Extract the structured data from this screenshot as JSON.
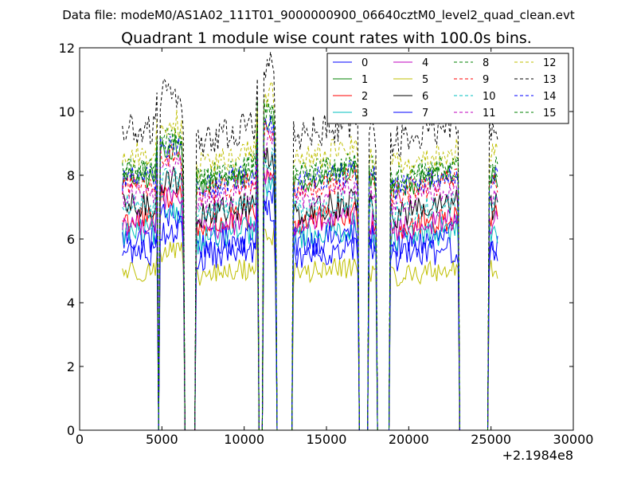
{
  "suptitle": "Data file: modeM0/AS1A02_111T01_9000000900_06640cztM0_level2_quad_clean.evt",
  "chart_data": {
    "type": "line",
    "title": "Quadrant 1 module wise count rates with 100.0s bins.",
    "xlabel": "",
    "ylabel": "",
    "xlim": [
      0,
      30000
    ],
    "ylim": [
      0,
      12
    ],
    "x_offset_label": "+2.1984e8",
    "x_ticks": [
      0,
      5000,
      10000,
      15000,
      20000,
      25000,
      30000
    ],
    "y_ticks": [
      0,
      2,
      4,
      6,
      8,
      10,
      12
    ],
    "x_tick_labels": [
      "0",
      "5000",
      "10000",
      "15000",
      "20000",
      "25000",
      "30000"
    ],
    "y_tick_labels": [
      "0",
      "2",
      "4",
      "6",
      "8",
      "10",
      "12"
    ],
    "legend_position": "top-right",
    "legend_columns": 4,
    "bin_size_s": 100,
    "x_start": 2600,
    "x_end": 25400,
    "gaps": [
      [
        4700,
        4900
      ],
      [
        6300,
        7100
      ],
      [
        10800,
        11200
      ],
      [
        11900,
        13000
      ],
      [
        16900,
        17600
      ],
      [
        18000,
        18900
      ],
      [
        23000,
        24900
      ]
    ],
    "series": [
      {
        "name": "0",
        "color": "#0000ff",
        "dash": "solid",
        "level": 6.0,
        "amp": 0.5
      },
      {
        "name": "1",
        "color": "#008000",
        "dash": "solid",
        "level": 7.9,
        "amp": 0.35
      },
      {
        "name": "2",
        "color": "#ff0000",
        "dash": "solid",
        "level": 6.6,
        "amp": 0.45
      },
      {
        "name": "3",
        "color": "#00bfbf",
        "dash": "solid",
        "level": 6.2,
        "amp": 0.45
      },
      {
        "name": "4",
        "color": "#bf00bf",
        "dash": "solid",
        "level": 6.5,
        "amp": 0.4
      },
      {
        "name": "5",
        "color": "#bfbf00",
        "dash": "solid",
        "level": 5.0,
        "amp": 0.35
      },
      {
        "name": "6",
        "color": "#000000",
        "dash": "solid",
        "level": 7.0,
        "amp": 0.45
      },
      {
        "name": "7",
        "color": "#0000ff",
        "dash": "solid",
        "level": 5.6,
        "amp": 0.45
      },
      {
        "name": "8",
        "color": "#008000",
        "dash": "dashed",
        "level": 8.2,
        "amp": 0.4
      },
      {
        "name": "9",
        "color": "#ff0000",
        "dash": "dashed",
        "level": 7.7,
        "amp": 0.4
      },
      {
        "name": "10",
        "color": "#00bfbf",
        "dash": "dashed",
        "level": 7.0,
        "amp": 0.4
      },
      {
        "name": "11",
        "color": "#bf00bf",
        "dash": "dashed",
        "level": 7.4,
        "amp": 0.4
      },
      {
        "name": "12",
        "color": "#bfbf00",
        "dash": "dashed",
        "level": 8.6,
        "amp": 0.45
      },
      {
        "name": "13",
        "color": "#000000",
        "dash": "dashed",
        "level": 9.4,
        "amp": 0.55
      },
      {
        "name": "14",
        "color": "#0000ff",
        "dash": "dashed",
        "level": 7.9,
        "amp": 0.4
      },
      {
        "name": "15",
        "color": "#008000",
        "dash": "dashed",
        "level": 8.1,
        "amp": 0.4
      }
    ]
  }
}
